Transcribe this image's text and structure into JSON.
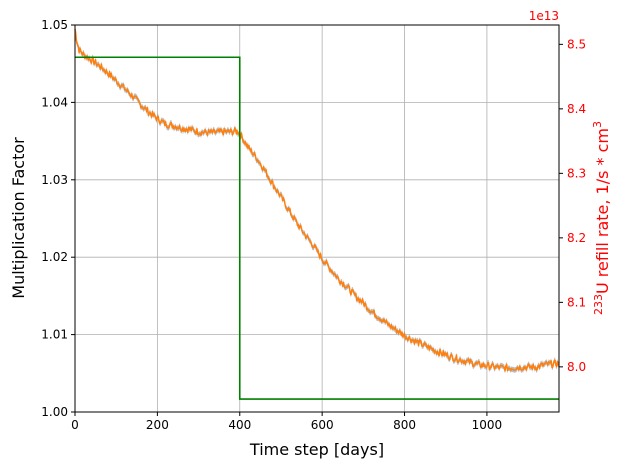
{
  "chart_data": {
    "type": "line",
    "xlabel": "Time step [days]",
    "ylabel": "Multiplication Factor",
    "y2label_sup": "233",
    "y2label_main": "U refill rate, 1/s * cm",
    "y2label_exp": "3",
    "y2_offset_text": "1e13",
    "xlim": [
      0,
      1175
    ],
    "ylim": [
      1.0,
      1.05
    ],
    "y2lim": [
      7.93,
      8.53
    ],
    "x_ticks": [
      0,
      200,
      400,
      600,
      800,
      1000
    ],
    "x_tick_labels": [
      "0",
      "200",
      "400",
      "600",
      "800",
      "1000"
    ],
    "y_ticks": [
      1.0,
      1.01,
      1.02,
      1.03,
      1.04,
      1.05
    ],
    "y_tick_labels": [
      "1.00",
      "1.01",
      "1.02",
      "1.03",
      "1.04",
      "1.05"
    ],
    "y2_ticks": [
      8.0,
      8.1,
      8.2,
      8.3,
      8.4,
      8.5
    ],
    "y2_tick_labels": [
      "8.0",
      "8.1",
      "8.2",
      "8.3",
      "8.4",
      "8.5"
    ],
    "grid": true,
    "colors": {
      "multiplication_factor": "#ff7f0e",
      "uncertainty_band": "#a0a0a0",
      "refill_rate": "#008000",
      "right_axis": "#ff0000",
      "grid": "#b0b0b0"
    },
    "series": [
      {
        "axis": "left",
        "x": [
          0,
          5,
          10,
          20,
          40,
          60,
          80,
          100,
          120,
          140,
          160,
          180,
          200,
          220,
          240,
          260,
          280,
          300,
          320,
          340,
          360,
          380,
          390,
          395,
          400,
          410,
          420,
          440,
          460,
          480,
          500,
          520,
          540,
          560,
          580,
          600,
          620,
          640,
          660,
          680,
          700,
          720,
          740,
          760,
          780,
          800,
          820,
          840,
          860,
          880,
          900,
          920,
          940,
          960,
          980,
          1000,
          1020,
          1040,
          1060,
          1080,
          1100,
          1120,
          1140,
          1160,
          1175
        ],
        "values": [
          1.0495,
          1.0478,
          1.0468,
          1.0462,
          1.0455,
          1.0447,
          1.0438,
          1.0428,
          1.0418,
          1.0408,
          1.0397,
          1.0387,
          1.0379,
          1.0372,
          1.037,
          1.0367,
          1.0365,
          1.0362,
          1.0361,
          1.0361,
          1.0362,
          1.0362,
          1.0363,
          1.0362,
          1.036,
          1.0351,
          1.0342,
          1.0329,
          1.0313,
          1.0295,
          1.0278,
          1.026,
          1.0243,
          1.0228,
          1.0214,
          1.0198,
          1.0185,
          1.0172,
          1.0162,
          1.015,
          1.0141,
          1.013,
          1.0122,
          1.0113,
          1.0106,
          1.0099,
          1.0093,
          1.0088,
          1.0083,
          1.0078,
          1.0074,
          1.007,
          1.0067,
          1.0064,
          1.0061,
          1.006,
          1.0058,
          1.0057,
          1.0057,
          1.0058,
          1.0058,
          1.0058,
          1.0061,
          1.0062,
          1.0063
        ]
      },
      {
        "axis": "right",
        "x": [
          0,
          400,
          400,
          1175
        ],
        "values": [
          8.48,
          8.48,
          7.95,
          7.95
        ]
      }
    ]
  }
}
